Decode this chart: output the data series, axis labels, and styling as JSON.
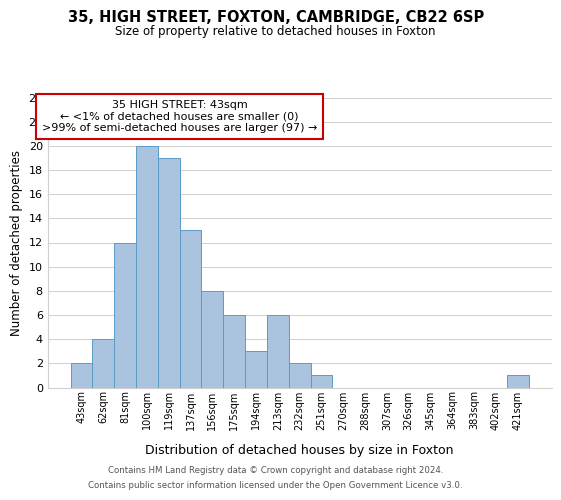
{
  "title": "35, HIGH STREET, FOXTON, CAMBRIDGE, CB22 6SP",
  "subtitle": "Size of property relative to detached houses in Foxton",
  "xlabel": "Distribution of detached houses by size in Foxton",
  "ylabel": "Number of detached properties",
  "bin_labels": [
    "43sqm",
    "62sqm",
    "81sqm",
    "100sqm",
    "119sqm",
    "137sqm",
    "156sqm",
    "175sqm",
    "194sqm",
    "213sqm",
    "232sqm",
    "251sqm",
    "270sqm",
    "288sqm",
    "307sqm",
    "326sqm",
    "345sqm",
    "364sqm",
    "383sqm",
    "402sqm",
    "421sqm"
  ],
  "bar_heights": [
    2,
    4,
    12,
    20,
    19,
    13,
    8,
    6,
    3,
    6,
    2,
    1,
    0,
    0,
    0,
    0,
    0,
    0,
    0,
    0,
    1
  ],
  "bar_color": "#aac4e0",
  "bar_edge_color": "#5a9bc8",
  "ylim": [
    0,
    24
  ],
  "yticks": [
    0,
    2,
    4,
    6,
    8,
    10,
    12,
    14,
    16,
    18,
    20,
    22,
    24
  ],
  "annotation_box_text": "35 HIGH STREET: 43sqm\n← <1% of detached houses are smaller (0)\n>99% of semi-detached houses are larger (97) →",
  "footnote1": "Contains HM Land Registry data © Crown copyright and database right 2024.",
  "footnote2": "Contains public sector information licensed under the Open Government Licence v3.0.",
  "background_color": "#ffffff",
  "grid_color": "#d0d0d0"
}
